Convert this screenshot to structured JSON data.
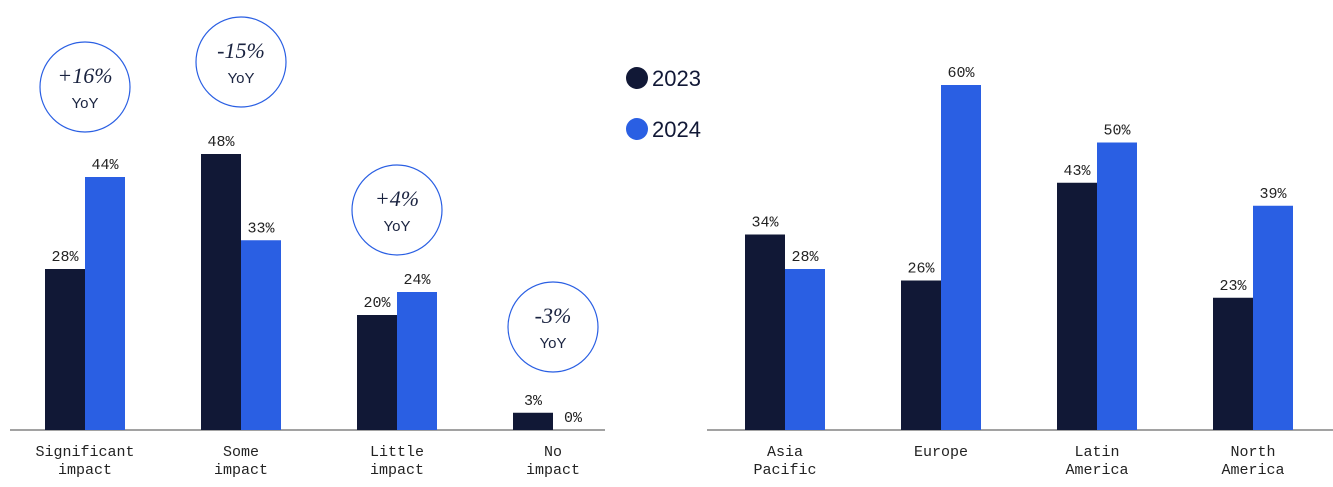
{
  "chart_data": [
    {
      "type": "bar",
      "categories": [
        "Significant impact",
        "Some impact",
        "Little impact",
        "No impact"
      ],
      "series": [
        {
          "name": "2023",
          "color": "#111836",
          "values": [
            28,
            48,
            20,
            3
          ],
          "value_labels": [
            "28%",
            "48%",
            "20%",
            "3%"
          ]
        },
        {
          "name": "2024",
          "color": "#2a5fe3",
          "values": [
            44,
            33,
            24,
            0
          ],
          "value_labels": [
            "44%",
            "33%",
            "24%",
            "0%"
          ]
        }
      ],
      "annotations": [
        {
          "text": "+16%",
          "subtext": "YoY"
        },
        {
          "text": "-15%",
          "subtext": "YoY"
        },
        {
          "text": "+4%",
          "subtext": "YoY"
        },
        {
          "text": "-3%",
          "subtext": "YoY"
        }
      ]
    },
    {
      "type": "bar",
      "categories": [
        "Asia Pacific",
        "Europe",
        "Latin America",
        "North America"
      ],
      "series": [
        {
          "color": "#111836",
          "values": [
            34,
            26,
            43,
            23
          ],
          "value_labels": [
            "34%",
            "26%",
            "43%",
            "23%"
          ]
        },
        {
          "color": "#2a5fe3",
          "values": [
            28,
            60,
            50,
            39
          ],
          "value_labels": [
            "28%",
            "60%",
            "50%",
            "39%"
          ]
        }
      ]
    }
  ]
}
